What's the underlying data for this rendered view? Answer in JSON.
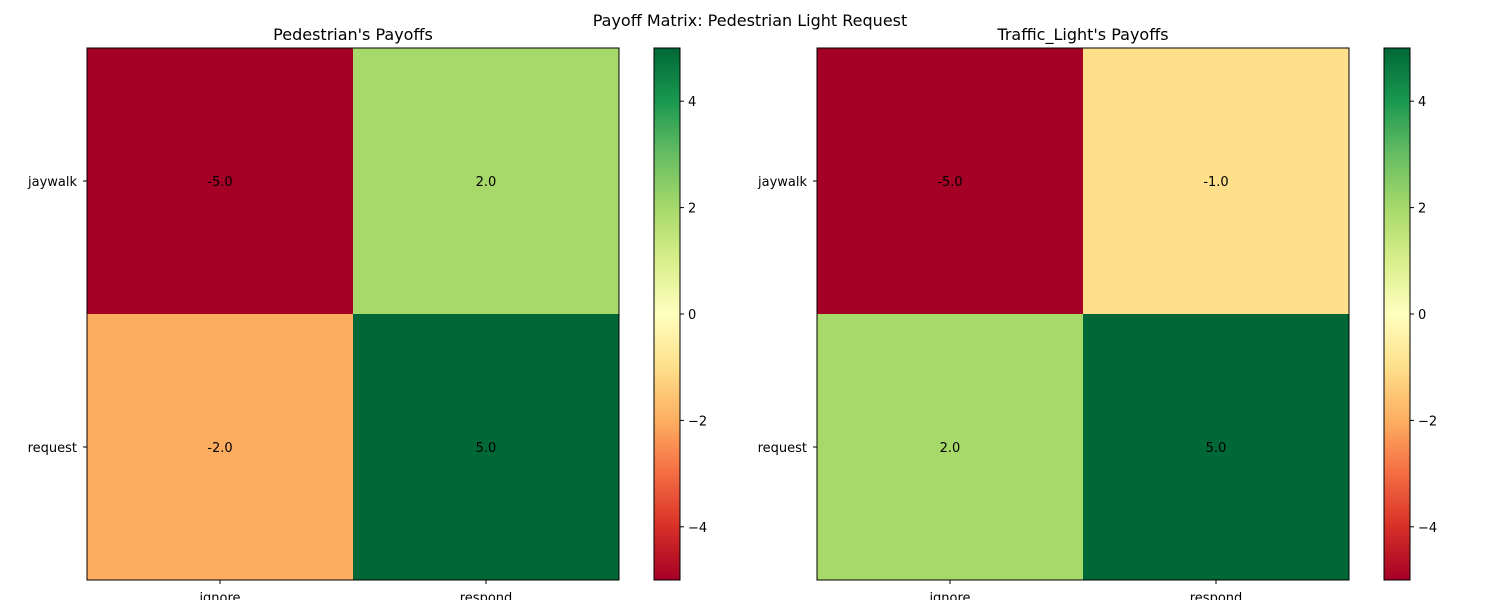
{
  "figure_title": "Payoff Matrix: Pedestrian Light Request",
  "colormap": {
    "name": "RdYlGn",
    "vmin": -5,
    "vmax": 5,
    "ticks": [
      -4,
      -2,
      0,
      2,
      4
    ],
    "tick_labels": [
      "−4",
      "−2",
      "0",
      "2",
      "4"
    ]
  },
  "chart_data": [
    {
      "type": "heatmap",
      "title": "Pedestrian's Payoffs",
      "rows": [
        "jaywalk",
        "request"
      ],
      "columns": [
        "ignore",
        "respond"
      ],
      "values": [
        [
          -5.0,
          2.0
        ],
        [
          -2.0,
          5.0
        ]
      ],
      "cell_labels": [
        [
          "-5.0",
          "2.0"
        ],
        [
          "-2.0",
          "5.0"
        ]
      ],
      "colors": [
        [
          "#a50026",
          "#a7d96a"
        ],
        [
          "#fcad60",
          "#006837"
        ]
      ]
    },
    {
      "type": "heatmap",
      "title": "Traffic_Light's Payoffs",
      "rows": [
        "jaywalk",
        "request"
      ],
      "columns": [
        "ignore",
        "respond"
      ],
      "values": [
        [
          -5.0,
          -1.0
        ],
        [
          2.0,
          5.0
        ]
      ],
      "cell_labels": [
        [
          "-5.0",
          "-1.0"
        ],
        [
          "2.0",
          "5.0"
        ]
      ],
      "colors": [
        [
          "#a50026",
          "#fee08b"
        ],
        [
          "#a7d96a",
          "#006837"
        ]
      ]
    }
  ]
}
